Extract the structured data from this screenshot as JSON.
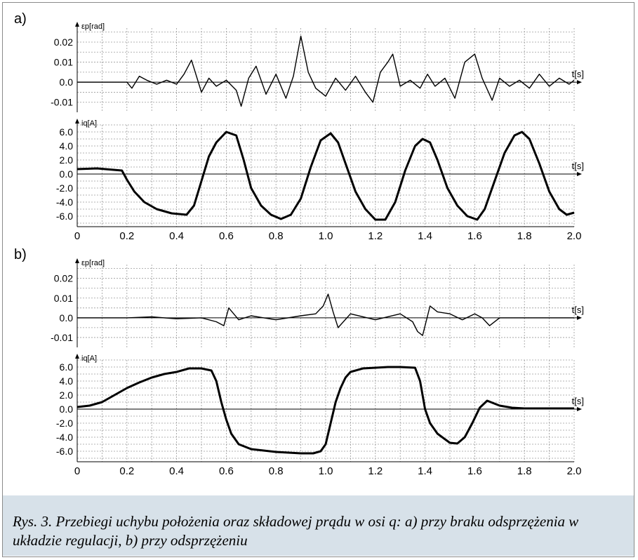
{
  "panels": [
    {
      "label": "a)",
      "id": "a"
    },
    {
      "label": "b)",
      "id": "b"
    }
  ],
  "caption": "Rys. 3. Przebiegi uchybu położenia oraz składowej prądu w osi q: a) przy braku odsprzężenia w układzie regulacji, b) przy odsprzężeniu",
  "colors": {
    "trace": "#000000",
    "grid": "#9a9a9a",
    "caption_bg": "#d7e1e9"
  },
  "chart_data": [
    {
      "type": "line",
      "panel": "a",
      "ylabel": "εp[rad]",
      "xlabel": "t[s]",
      "y_ticks": [
        "0.02",
        "0.01",
        "0.0",
        "-0.01"
      ],
      "ylim": [
        -0.015,
        0.027
      ],
      "x_ticks": [],
      "xlim": [
        0,
        2.0
      ],
      "series": [
        {
          "x": [
            0,
            0.1,
            0.2,
            0.22,
            0.25,
            0.28,
            0.32,
            0.36,
            0.4,
            0.43,
            0.46,
            0.5,
            0.53,
            0.56,
            0.6,
            0.64,
            0.66,
            0.69,
            0.72,
            0.76,
            0.8,
            0.84,
            0.87,
            0.9,
            0.93,
            0.96,
            1.0,
            1.04,
            1.08,
            1.12,
            1.16,
            1.19,
            1.22,
            1.25,
            1.27,
            1.3,
            1.34,
            1.38,
            1.41,
            1.44,
            1.48,
            1.52,
            1.56,
            1.6,
            1.63,
            1.67,
            1.7,
            1.74,
            1.78,
            1.82,
            1.86,
            1.9,
            1.94,
            1.98,
            2.0
          ],
          "y": [
            0,
            0,
            0,
            -0.003,
            0.003,
            0.001,
            -0.001,
            0.001,
            -0.001,
            0.004,
            0.011,
            -0.005,
            0.002,
            -0.002,
            0.001,
            -0.004,
            -0.012,
            0.002,
            0.008,
            -0.006,
            0.004,
            -0.008,
            0.003,
            0.023,
            0.005,
            -0.003,
            -0.007,
            0.002,
            -0.004,
            0.003,
            -0.005,
            -0.01,
            0.005,
            0.01,
            0.014,
            -0.002,
            0.001,
            -0.003,
            0.004,
            -0.002,
            0.002,
            -0.008,
            0.01,
            0.014,
            0.002,
            -0.009,
            0.002,
            -0.002,
            0.001,
            -0.003,
            0.004,
            -0.002,
            0.002,
            -0.001,
            0.001
          ]
        }
      ]
    },
    {
      "type": "line",
      "panel": "a",
      "ylabel": "iq[A]",
      "xlabel": "t[s]",
      "y_ticks": [
        "6.0",
        "4.0",
        "2.0",
        "0.0",
        "-2.0",
        "-4.0",
        "-6.0"
      ],
      "ylim": [
        -7.5,
        7.0
      ],
      "x_ticks": [
        "0",
        "0.2",
        "0.4",
        "0.6",
        "0.8",
        "1.0",
        "1.2",
        "1.4",
        "1.6",
        "1.8",
        "2.0"
      ],
      "xlim": [
        0,
        2.0
      ],
      "series": [
        {
          "x": [
            0,
            0.08,
            0.18,
            0.2,
            0.23,
            0.27,
            0.32,
            0.38,
            0.44,
            0.47,
            0.5,
            0.53,
            0.56,
            0.6,
            0.64,
            0.67,
            0.7,
            0.74,
            0.78,
            0.82,
            0.86,
            0.9,
            0.94,
            0.98,
            1.02,
            1.05,
            1.08,
            1.12,
            1.16,
            1.2,
            1.24,
            1.28,
            1.32,
            1.36,
            1.39,
            1.42,
            1.45,
            1.49,
            1.53,
            1.57,
            1.61,
            1.64,
            1.68,
            1.72,
            1.76,
            1.79,
            1.82,
            1.86,
            1.9,
            1.94,
            1.97,
            2.0
          ],
          "y": [
            0.7,
            0.8,
            0.5,
            -0.8,
            -2.5,
            -4.0,
            -5.0,
            -5.6,
            -5.8,
            -4.5,
            -1.0,
            2.5,
            4.5,
            6.0,
            5.5,
            2.0,
            -2.0,
            -4.5,
            -5.8,
            -6.4,
            -5.8,
            -3.5,
            1.0,
            4.8,
            5.8,
            4.5,
            1.5,
            -2.5,
            -5.0,
            -6.5,
            -6.5,
            -4.0,
            0.5,
            4.0,
            5.0,
            4.5,
            2.0,
            -2.0,
            -4.5,
            -6.0,
            -6.5,
            -5.0,
            -1.0,
            3.0,
            5.5,
            6.0,
            5.0,
            1.5,
            -2.5,
            -5.0,
            -5.8,
            -5.5
          ]
        }
      ]
    },
    {
      "type": "line",
      "panel": "b",
      "ylabel": "εp[rad]",
      "xlabel": "t[s]",
      "y_ticks": [
        "0.02",
        "0.01",
        "0.0",
        "-0.01"
      ],
      "ylim": [
        -0.015,
        0.027
      ],
      "x_ticks": [],
      "xlim": [
        0,
        2.0
      ],
      "series": [
        {
          "x": [
            0,
            0.2,
            0.3,
            0.4,
            0.5,
            0.56,
            0.59,
            0.61,
            0.63,
            0.65,
            0.7,
            0.8,
            0.9,
            0.96,
            0.99,
            1.01,
            1.03,
            1.05,
            1.1,
            1.2,
            1.3,
            1.35,
            1.37,
            1.39,
            1.42,
            1.45,
            1.5,
            1.55,
            1.6,
            1.63,
            1.66,
            1.7,
            1.8,
            1.9,
            2.0
          ],
          "y": [
            0,
            0,
            0.0005,
            -0.0005,
            0,
            -0.002,
            -0.004,
            0.005,
            0.002,
            -0.001,
            0.001,
            -0.001,
            0.001,
            0.002,
            0.006,
            0.012,
            0.003,
            -0.005,
            0.002,
            -0.001,
            0.002,
            -0.002,
            -0.007,
            -0.009,
            0.006,
            0.003,
            0.002,
            -0.001,
            0.002,
            0,
            -0.004,
            0,
            0,
            0,
            0
          ]
        }
      ]
    },
    {
      "type": "line",
      "panel": "b",
      "ylabel": "iq[A]",
      "xlabel": "t[s]",
      "y_ticks": [
        "6.0",
        "4.0",
        "2.0",
        "0.0",
        "-2.0",
        "-4.0",
        "-6.0"
      ],
      "ylim": [
        -7.5,
        7.0
      ],
      "x_ticks": [
        "0",
        "0.2",
        "0.4",
        "0.6",
        "0.8",
        "1.0",
        "1.2",
        "1.4",
        "1.6",
        "1.8",
        "2.0"
      ],
      "xlim": [
        0,
        2.0
      ],
      "series": [
        {
          "x": [
            0,
            0.05,
            0.1,
            0.15,
            0.2,
            0.25,
            0.3,
            0.35,
            0.4,
            0.45,
            0.5,
            0.54,
            0.56,
            0.58,
            0.6,
            0.62,
            0.65,
            0.7,
            0.75,
            0.8,
            0.85,
            0.9,
            0.95,
            0.98,
            1.0,
            1.02,
            1.04,
            1.06,
            1.08,
            1.1,
            1.15,
            1.2,
            1.25,
            1.3,
            1.36,
            1.38,
            1.4,
            1.42,
            1.45,
            1.5,
            1.53,
            1.56,
            1.59,
            1.62,
            1.65,
            1.7,
            1.75,
            1.8,
            1.9,
            2.0
          ],
          "y": [
            0.3,
            0.5,
            1.0,
            2.0,
            3.0,
            3.8,
            4.5,
            5.0,
            5.3,
            5.8,
            5.8,
            5.5,
            4.0,
            1.0,
            -1.5,
            -3.5,
            -5.0,
            -5.7,
            -5.9,
            -6.1,
            -6.2,
            -6.3,
            -6.3,
            -6.0,
            -5.0,
            -2.0,
            1.0,
            3.0,
            4.5,
            5.3,
            5.8,
            5.9,
            6.0,
            6.0,
            5.9,
            4.0,
            0.0,
            -2.0,
            -3.5,
            -4.8,
            -4.9,
            -4.0,
            -2.0,
            0.2,
            1.2,
            0.5,
            0.2,
            0.1,
            0.1,
            0.1
          ]
        }
      ]
    }
  ]
}
